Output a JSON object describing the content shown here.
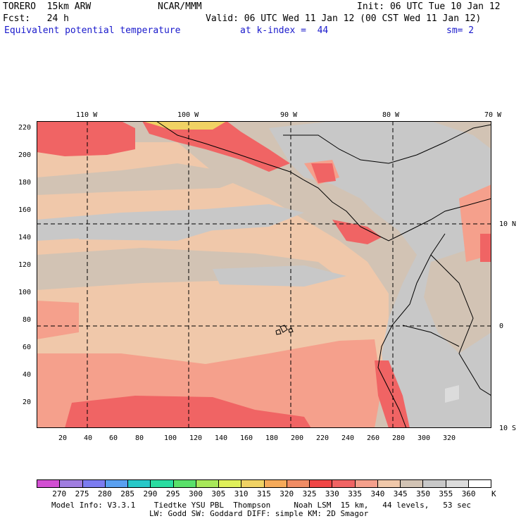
{
  "header": {
    "model": "TORERO  15km ARW",
    "org": "NCAR/MMM",
    "init": "Init: 06 UTC Tue 10 Jan 12",
    "fcst": "Fcst:   24 h",
    "valid": "Valid: 06 UTC Wed 11 Jan 12 (00 CST Wed 11 Jan 12)",
    "field": "Equivalent potential temperature",
    "level": "at k-index =  44",
    "smooth": "sm= 2"
  },
  "map": {
    "lon_labels": [
      "110 W",
      "100 W",
      "90 W",
      "80 W",
      "70 W"
    ],
    "lat_labels": [
      "10 N",
      "0",
      "10 S"
    ],
    "y_ticks": [
      "220",
      "200",
      "180",
      "160",
      "140",
      "120",
      "100",
      "80",
      "60",
      "40",
      "20"
    ],
    "x_ticks": [
      "20",
      "40",
      "60",
      "80",
      "100",
      "120",
      "140",
      "160",
      "180",
      "200",
      "220",
      "240",
      "260",
      "280",
      "300",
      "320"
    ]
  },
  "colorbar": {
    "colors": [
      "#d24fd2",
      "#a07de0",
      "#7c7cf0",
      "#5aa0f0",
      "#28c8c8",
      "#2adca0",
      "#5ae06a",
      "#a8e85a",
      "#e0f05a",
      "#f0d264",
      "#f5aa5a",
      "#f08c64",
      "#f04646",
      "#f06464",
      "#f5a08c",
      "#f0c8aa",
      "#d2c3b4",
      "#c8c8c8",
      "#dcdcdc",
      "#ffffff"
    ],
    "labels": [
      "270",
      "275",
      "280",
      "285",
      "290",
      "295",
      "300",
      "305",
      "310",
      "315",
      "320",
      "325",
      "330",
      "335",
      "340",
      "345",
      "350",
      "355",
      "360"
    ],
    "unit": "K"
  },
  "footer": {
    "line1": "Model Info: V3.3.1    Tiedtke YSU PBL  Thompson     Noah LSM  15 km,   44 levels,   53 sec",
    "line2": "LW: Godd SW: Goddard DIFF: simple KM: 2D Smagor"
  }
}
